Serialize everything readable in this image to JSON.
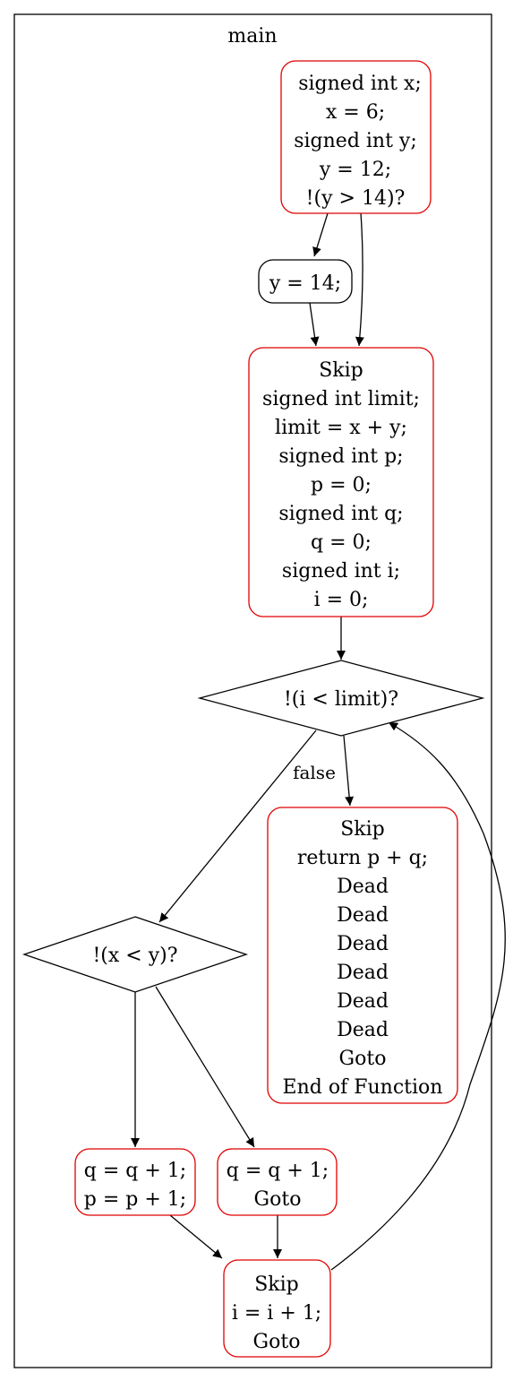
{
  "cluster": {
    "title": "main"
  },
  "colors": {
    "red_node": "#e00000",
    "black_node": "#000000",
    "edge": "#000000"
  },
  "nodes": {
    "n1": [
      "signed int x;",
      "x = 6;",
      "signed int y;",
      "y = 12;",
      "!(y > 14)?"
    ],
    "n2": [
      "y = 14;"
    ],
    "n3": [
      "Skip",
      "signed int limit;",
      "limit = x + y;",
      "signed int p;",
      "p = 0;",
      "signed int q;",
      "q = 0;",
      "signed int i;",
      "i = 0;"
    ],
    "n4": [
      "!(i < limit)?"
    ],
    "n5": [
      "Skip",
      "return p + q;",
      "Dead",
      "Dead",
      "Dead",
      "Dead",
      "Dead",
      "Dead",
      "Goto",
      "End of Function"
    ],
    "n6": [
      "!(x < y)?"
    ],
    "n7": [
      "q = q + 1;",
      "p = p + 1;"
    ],
    "n8": [
      "q = q + 1;",
      "Goto"
    ],
    "n9": [
      "Skip",
      "i = i + 1;",
      "Goto"
    ]
  },
  "edges": {
    "false_label": "false"
  }
}
